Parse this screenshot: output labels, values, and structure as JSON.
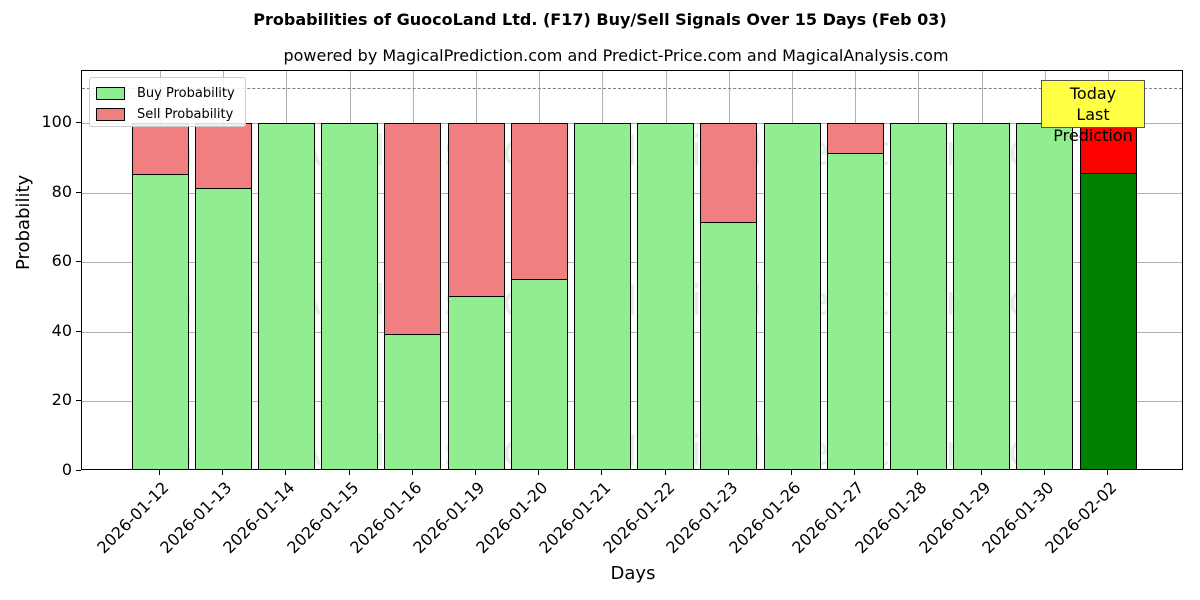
{
  "chart_data": {
    "type": "bar",
    "stacked": true,
    "title": "Probabilities of GuocoLand Ltd. (F17) Buy/Sell Signals Over 15 Days (Feb 03)",
    "subtitle": "powered by MagicalPrediction.com and Predict-Price.com and MagicalAnalysis.com",
    "xlabel": "Days",
    "ylabel": "Probability",
    "ylim": [
      0,
      115
    ],
    "yticks": [
      0,
      20,
      40,
      60,
      80,
      100
    ],
    "grid": true,
    "legend_position": "upper left",
    "reference_line": {
      "y": 110,
      "style": "dashed",
      "color": "#808080"
    },
    "categories": [
      "2026-01-12",
      "2026-01-13",
      "2026-01-14",
      "2026-01-15",
      "2026-01-16",
      "2026-01-19",
      "2026-01-20",
      "2026-01-21",
      "2026-01-22",
      "2026-01-23",
      "2026-01-26",
      "2026-01-27",
      "2026-01-28",
      "2026-01-29",
      "2026-01-30",
      "2026-02-02"
    ],
    "series": [
      {
        "name": "Buy Probability",
        "color": "#90ee90",
        "values": [
          85.5,
          81.4,
          100,
          100,
          39.4,
          50.2,
          55.1,
          100,
          100,
          71.6,
          100,
          91.5,
          100,
          100,
          100,
          85.6
        ]
      },
      {
        "name": "Sell Probability",
        "color": "#f08080",
        "values": [
          14.5,
          18.6,
          0,
          0,
          60.6,
          49.8,
          44.9,
          0,
          0,
          28.4,
          0,
          8.5,
          0,
          0,
          0,
          14.4
        ]
      }
    ],
    "highlight": {
      "index": 15,
      "buy_color": "#008000",
      "sell_color": "#ff0000"
    },
    "annotation": {
      "text_line1": "Today",
      "text_line2": "Last Prediction",
      "background": "#ffff44"
    },
    "watermarks": [
      "MagicalAnalysis.com",
      "MagicalPrediction.com"
    ]
  },
  "legend": {
    "buy_label": "Buy Probability",
    "sell_label": "Sell Probability"
  }
}
